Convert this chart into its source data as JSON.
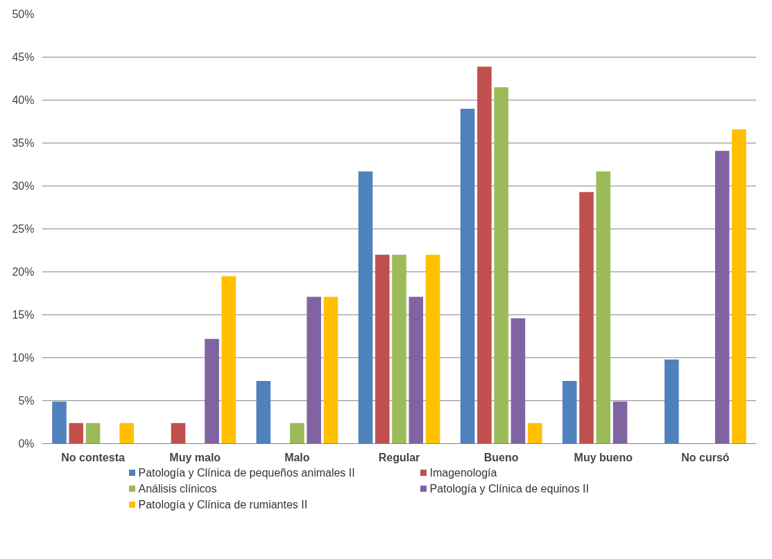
{
  "chart_data": {
    "type": "bar",
    "categories": [
      "No contesta",
      "Muy malo",
      "Malo",
      "Regular",
      "Bueno",
      "Muy bueno",
      "No cursó"
    ],
    "series": [
      {
        "name": "Patología y Clínica de pequeños animales II",
        "color": "#4f81bd",
        "values": [
          4.9,
          0,
          7.3,
          31.7,
          39.0,
          7.3,
          9.8
        ]
      },
      {
        "name": "Imagenología",
        "color": "#c0504d",
        "values": [
          2.4,
          2.4,
          0,
          22.0,
          43.9,
          29.3,
          0
        ]
      },
      {
        "name": "Análisis clínicos",
        "color": "#9bbb59",
        "values": [
          2.4,
          0,
          2.4,
          22.0,
          41.5,
          31.7,
          0
        ]
      },
      {
        "name": "Patología y Clínica de equinos II",
        "color": "#8064a2",
        "values": [
          0,
          12.2,
          17.1,
          17.1,
          14.6,
          4.9,
          34.1
        ]
      },
      {
        "name": "Patología y Clínica de rumiantes II",
        "color": "#ffc000",
        "values": [
          2.4,
          19.5,
          17.1,
          22.0,
          2.4,
          0,
          36.6
        ]
      }
    ],
    "ylim": [
      0,
      50
    ],
    "yticks": [
      {
        "value": 0,
        "label": "0%"
      },
      {
        "value": 5,
        "label": "5%"
      },
      {
        "value": 10,
        "label": "10%"
      },
      {
        "value": 15,
        "label": "15%"
      },
      {
        "value": 20,
        "label": "20%"
      },
      {
        "value": 25,
        "label": "25%"
      },
      {
        "value": 30,
        "label": "30%"
      },
      {
        "value": 35,
        "label": "35%"
      },
      {
        "value": 40,
        "label": "40%"
      },
      {
        "value": 45,
        "label": "45%"
      },
      {
        "value": 50,
        "label": "50%"
      }
    ],
    "grid": "y",
    "legend": "bottom"
  }
}
